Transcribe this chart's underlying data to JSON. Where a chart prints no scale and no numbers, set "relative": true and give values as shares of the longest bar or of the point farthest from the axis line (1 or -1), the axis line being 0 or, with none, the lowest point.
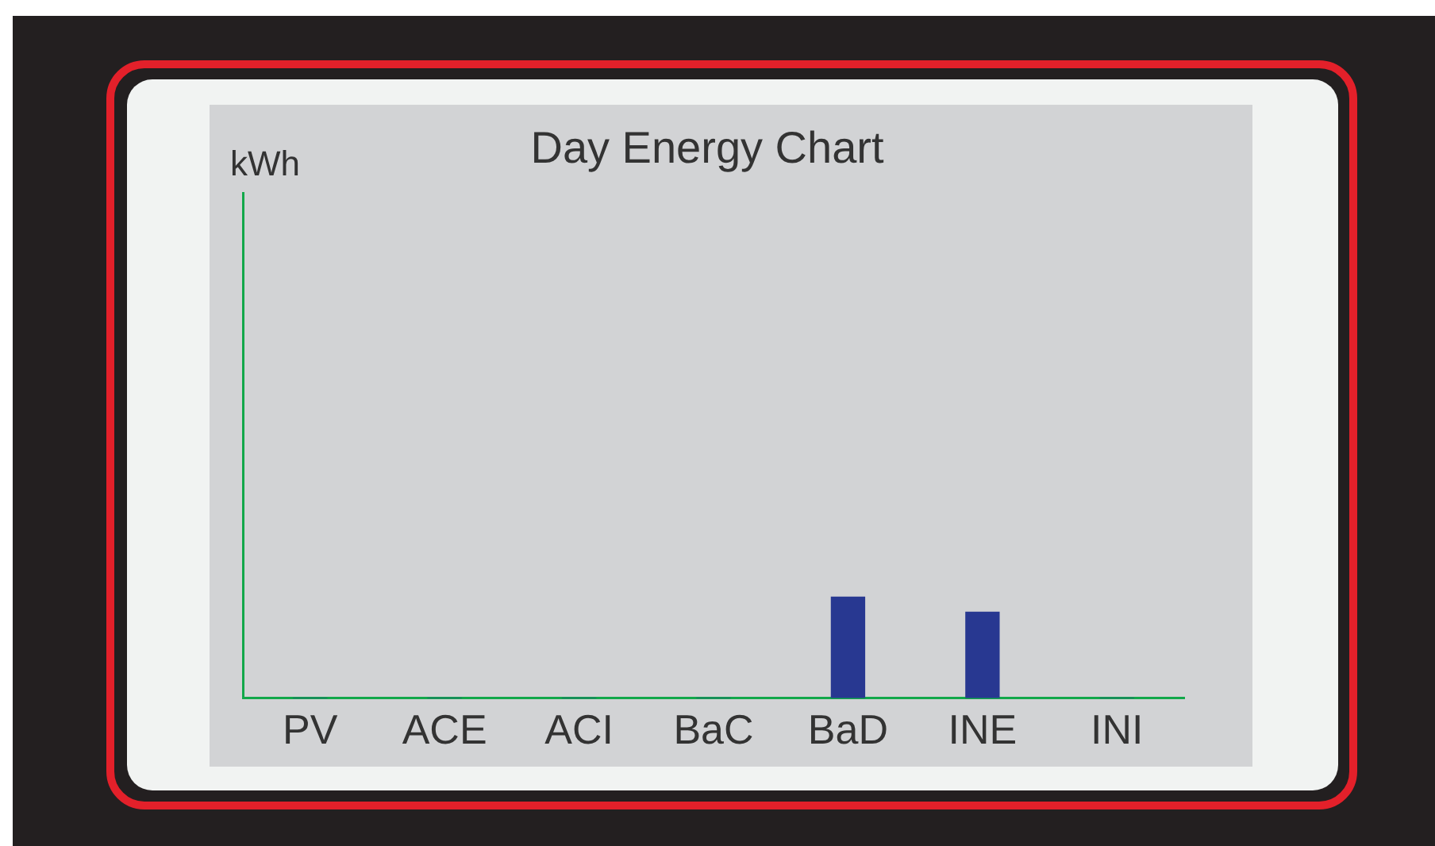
{
  "chart_data": {
    "type": "bar",
    "title": "Day Energy Chart",
    "annotations": [
      "kWh"
    ],
    "categories": [
      "PV",
      "ACE",
      "ACI",
      "BaC",
      "BaD",
      "INE",
      "INI"
    ],
    "values": [
      0,
      0,
      0,
      0,
      1,
      0.85,
      0
    ],
    "color": "#283891",
    "relative": true,
    "grid": false,
    "legend": false
  }
}
